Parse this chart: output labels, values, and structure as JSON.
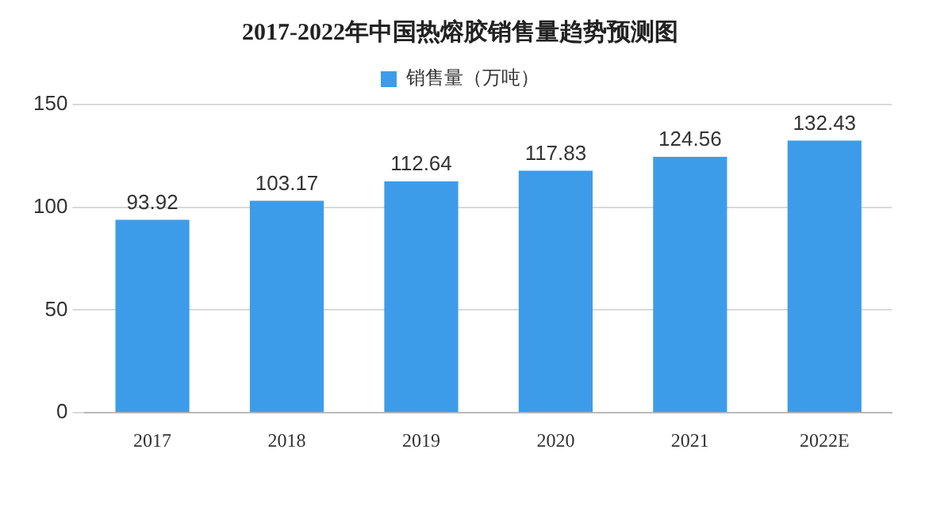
{
  "chart_data": {
    "type": "bar",
    "title": "2017-2022年中国热熔胶销售量趋势预测图",
    "categories": [
      "2017",
      "2018",
      "2019",
      "2020",
      "2021",
      "2022E"
    ],
    "series": [
      {
        "name": "销售量（万吨）",
        "color": "#3d9cea",
        "values": [
          93.92,
          103.17,
          112.64,
          117.83,
          124.56,
          132.43
        ]
      }
    ],
    "ylim": [
      0,
      150
    ],
    "yticks": [
      0,
      50,
      100,
      150
    ],
    "grid": "y",
    "legend": "top",
    "data_labels": true
  }
}
